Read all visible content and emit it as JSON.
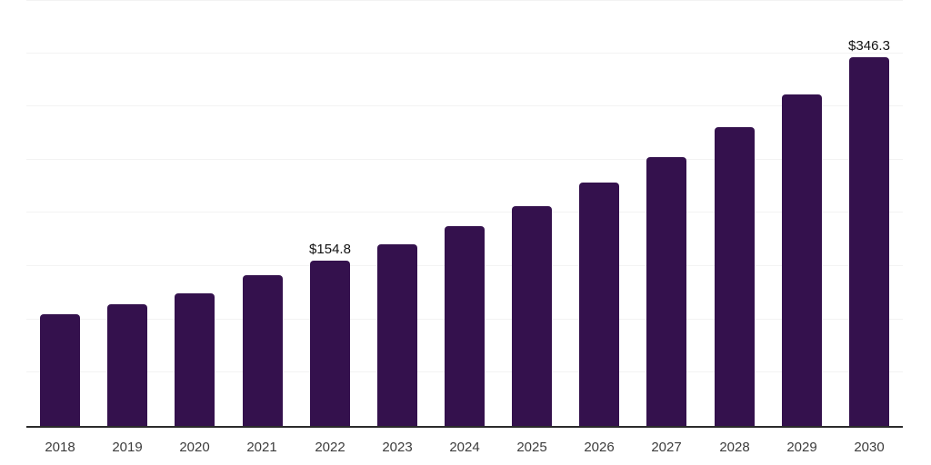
{
  "chart_data": {
    "type": "bar",
    "title": "",
    "xlabel": "",
    "ylabel": "",
    "categories": [
      "2018",
      "2019",
      "2020",
      "2021",
      "2022",
      "2023",
      "2024",
      "2025",
      "2026",
      "2027",
      "2028",
      "2029",
      "2030"
    ],
    "values": [
      104.5,
      114.1,
      124.8,
      141.5,
      154.8,
      170.3,
      187.5,
      206.5,
      228.5,
      252.2,
      280.2,
      311.6,
      346.3
    ],
    "point_labels": [
      "",
      "",
      "",
      "",
      "$154.8",
      "",
      "",
      "",
      "",
      "",
      "",
      "",
      "$346.3"
    ],
    "ylim": [
      0,
      400
    ],
    "gridline_step": 50,
    "grid": true,
    "legend_position": "none",
    "y_axis_labels_visible": false,
    "colors": {
      "bar": "#34114D",
      "axis_line": "#2b2b2b",
      "gridline": "#f3f3f3",
      "point_label_text": "#111111",
      "tick_label_text": "#3c3c3c"
    }
  }
}
